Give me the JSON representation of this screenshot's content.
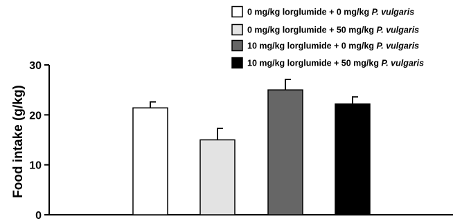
{
  "chart_data": {
    "type": "bar",
    "ylabel": "Food intake (g/kg)",
    "ylim": [
      0,
      30
    ],
    "yticks": [
      0,
      10,
      20,
      30
    ],
    "grid": false,
    "legend_position": "top-right",
    "series": [
      {
        "legend_prefix": "0 mg/kg lorglumide + 0 mg/kg",
        "legend_species": "P. vulgaris",
        "value": 21.4,
        "error": 1.2,
        "color": "#ffffff"
      },
      {
        "legend_prefix": "0 mg/kg lorglumide + 50 mg/kg",
        "legend_species": "P. vulgaris",
        "value": 15.0,
        "error": 2.3,
        "color": "#e3e3e3"
      },
      {
        "legend_prefix": "10 mg/kg lorglumide + 0 mg/kg",
        "legend_species": "P. vulgaris",
        "value": 25.0,
        "error": 2.1,
        "color": "#666666"
      },
      {
        "legend_prefix": "10 mg/kg lorglumide + 50 mg/kg",
        "legend_species": "P. vulgaris",
        "value": 22.2,
        "error": 1.4,
        "color": "#000000"
      }
    ]
  }
}
